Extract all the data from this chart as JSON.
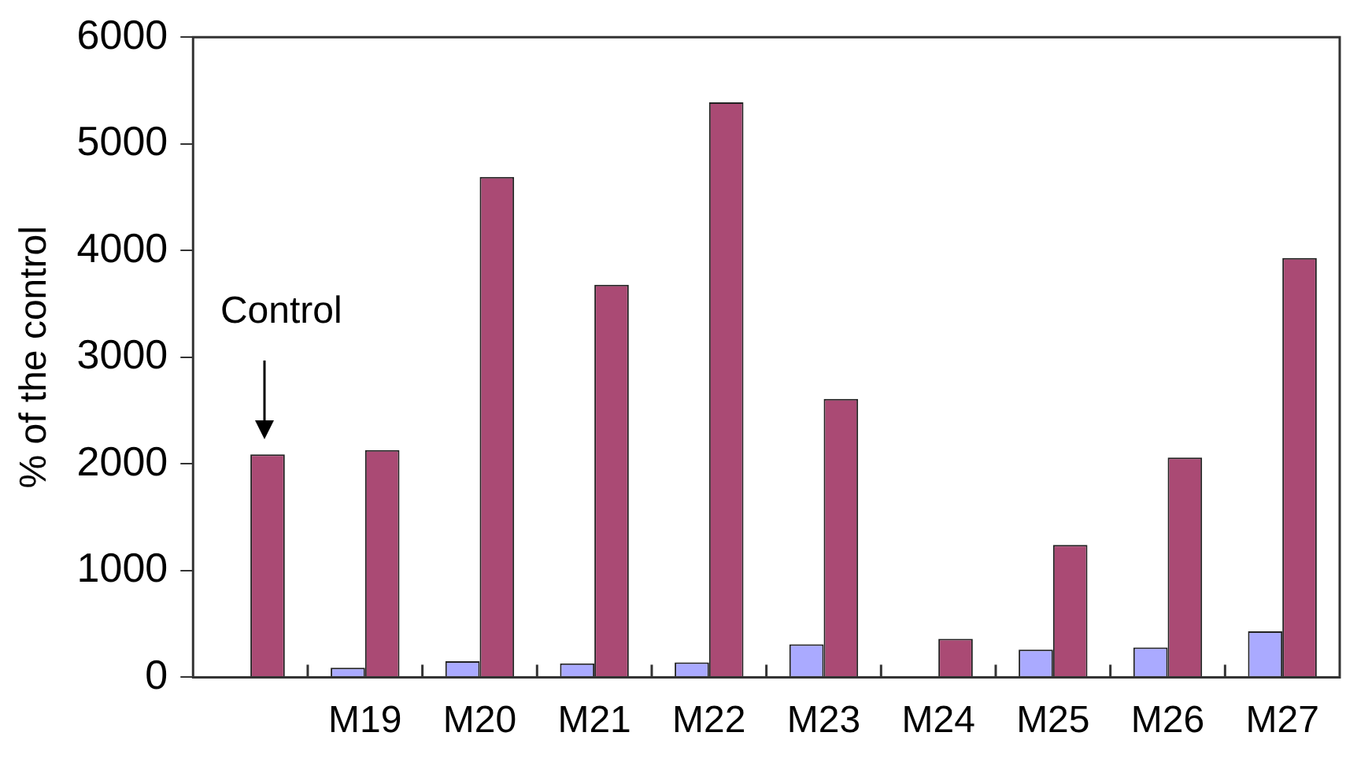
{
  "chart_data": {
    "type": "bar",
    "ylabel": "% of the control",
    "categories": [
      null,
      "M19",
      "M20",
      "M21",
      "M22",
      "M23",
      "M24",
      "M25",
      "M26",
      "M27"
    ],
    "series": [
      {
        "color": "#aaaaff",
        "values": [
          null,
          90,
          150,
          130,
          140,
          310,
          null,
          260,
          280,
          430
        ]
      },
      {
        "color": "#aa4a74",
        "values": [
          2090,
          2130,
          4690,
          3680,
          5390,
          2610,
          360,
          1240,
          2060,
          3930
        ]
      }
    ],
    "ylim": [
      0,
      6000
    ],
    "yticks": [
      0,
      1000,
      2000,
      3000,
      4000,
      5000,
      6000
    ],
    "annotations": [
      "Control"
    ],
    "grid": false,
    "legend": false
  }
}
